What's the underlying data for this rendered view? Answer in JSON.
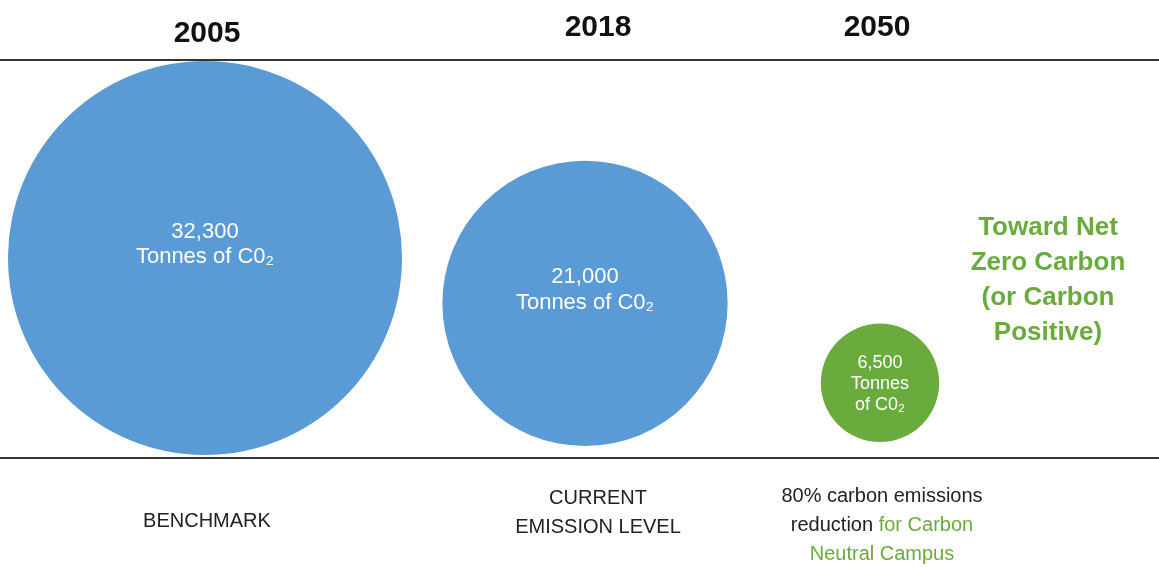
{
  "chart_data": {
    "type": "other",
    "categories": [
      "2005",
      "2018",
      "2050"
    ],
    "values": [
      32300,
      21000,
      6500
    ],
    "colors": [
      "#5b9bd5",
      "#5b9bd5",
      "#6aab3e"
    ],
    "value_labels": [
      "32,300\nTonnes of C0₂",
      "21,000\nTonnes of C0₂",
      "6,500\nTonnes\nof C0₂"
    ],
    "annotations": [
      "Toward Net\nZero Carbon\n(or Carbon\nPositive)",
      "BENCHMARK",
      "CURRENT\nEMISSION LEVEL",
      "80% carbon emissions\nreduction",
      "for Carbon\nNeutral Campus"
    ]
  }
}
